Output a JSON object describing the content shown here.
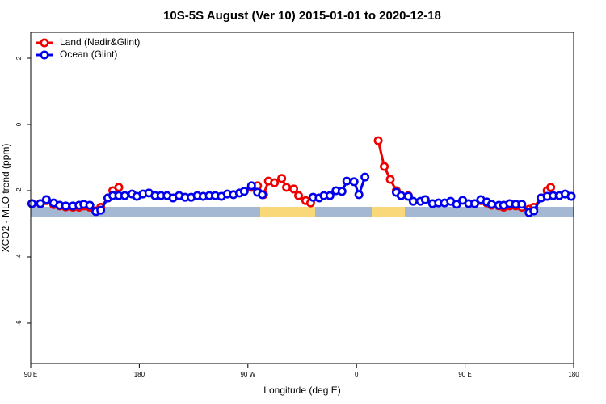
{
  "chart_data": {
    "type": "line",
    "title": "10S-5S August (Ver 10)   2015-01-01 to 2020-12-18",
    "x_label": "Longitude (deg E)",
    "y_label": "XCO2 - MLO trend (ppm)",
    "xlim": [
      90,
      540
    ],
    "xticks": [
      {
        "value": 90,
        "label": "90 E"
      },
      180,
      {
        "value": 270,
        "label": "90 W"
      },
      {
        "value": 360,
        "label": "0"
      },
      {
        "value": 450,
        "label": "90 E"
      },
      {
        "value": 540,
        "label": "180"
      }
    ],
    "ylim": [
      -7.22,
      2.78
    ],
    "yticks": [
      2,
      0,
      -2,
      -4,
      -6
    ],
    "legend": "upper left",
    "series": [
      {
        "name": "Land (Nadir&Glint)",
        "color": "#ee0000",
        "x": [
          91,
          98,
          103,
          109,
          114,
          119,
          125,
          130,
          134,
          139,
          144,
          148,
          154,
          158,
          163,
          168,
          273,
          278,
          283,
          287,
          292,
          298,
          302,
          308,
          312,
          318,
          322,
          330,
          378,
          383,
          388,
          393,
          397,
          403,
          410,
          463,
          468,
          472,
          478,
          482,
          487,
          492,
          497,
          503,
          507,
          513,
          518,
          521
        ],
        "values": [
          -2.39,
          -2.39,
          -2.3,
          -2.42,
          -2.46,
          -2.49,
          -2.5,
          -2.5,
          -2.46,
          -2.5,
          -2.61,
          -2.5,
          -2.22,
          -2.0,
          -1.9,
          null,
          -1.9,
          -1.85,
          -2.12,
          -1.71,
          -1.76,
          -1.63,
          -1.9,
          -1.95,
          -2.15,
          -2.3,
          -2.37,
          null,
          -0.49,
          -1.27,
          -1.66,
          -2.0,
          -2.15,
          -2.15,
          null,
          -2.3,
          -2.37,
          -2.44,
          -2.46,
          -2.5,
          -2.46,
          -2.46,
          -2.5,
          -2.56,
          -2.5,
          -2.22,
          -2.0,
          -1.9
        ]
      },
      {
        "name": "Ocean (Glint)",
        "color": "#0000ee",
        "x": [
          91,
          98,
          103,
          109,
          114,
          119,
          125,
          130,
          134,
          139,
          144,
          148,
          154,
          158,
          163,
          168,
          174,
          178,
          183,
          188,
          193,
          198,
          203,
          208,
          213,
          218,
          223,
          228,
          233,
          238,
          243,
          248,
          253,
          258,
          263,
          267,
          273,
          278,
          282,
          300,
          324,
          329,
          333,
          338,
          343,
          348,
          352,
          358,
          362,
          367,
          380,
          393,
          397,
          403,
          407,
          413,
          417,
          423,
          428,
          433,
          438,
          443,
          448,
          453,
          458,
          463,
          468,
          472,
          478,
          482,
          487,
          492,
          497,
          503,
          507,
          513,
          518,
          523,
          528,
          533,
          538
        ],
        "values": [
          -2.39,
          -2.39,
          -2.27,
          -2.37,
          -2.44,
          -2.46,
          -2.46,
          -2.44,
          -2.41,
          -2.44,
          -2.63,
          -2.59,
          -2.22,
          -2.15,
          -2.15,
          -2.15,
          -2.1,
          -2.17,
          -2.1,
          -2.07,
          -2.15,
          -2.15,
          -2.15,
          -2.22,
          -2.15,
          -2.2,
          -2.2,
          -2.15,
          -2.17,
          -2.15,
          -2.15,
          -2.17,
          -2.1,
          -2.12,
          -2.07,
          -2.02,
          -1.85,
          -2.05,
          -2.12,
          null,
          -2.2,
          -2.22,
          -2.15,
          -2.15,
          -2.0,
          -2.02,
          -1.71,
          -1.73,
          -2.12,
          -1.59,
          null,
          -2.05,
          -2.15,
          -2.17,
          -2.32,
          -2.32,
          -2.27,
          -2.39,
          -2.37,
          -2.37,
          -2.32,
          -2.41,
          -2.29,
          -2.39,
          -2.39,
          -2.27,
          -2.34,
          -2.41,
          -2.44,
          -2.44,
          -2.39,
          -2.41,
          -2.41,
          -2.66,
          -2.61,
          -2.22,
          -2.17,
          -2.15,
          -2.15,
          -2.1,
          -2.17
        ]
      }
    ]
  }
}
